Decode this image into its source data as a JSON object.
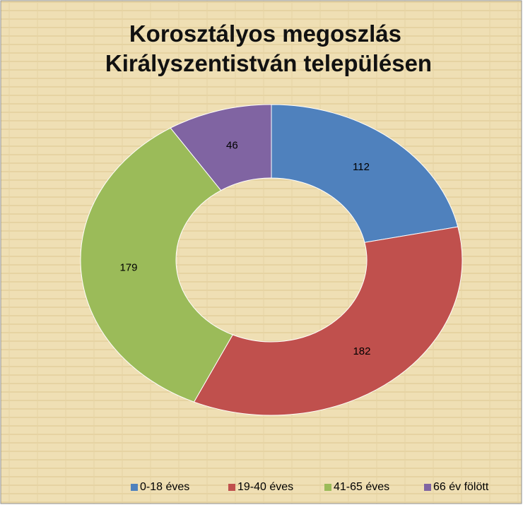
{
  "chart_data": {
    "type": "donut",
    "title": [
      "Korosztályos megoszlás",
      "Királyszentistván településen"
    ],
    "categories": [
      "0-18 éves",
      "19-40 éves",
      "41-65 éves",
      "66 év fölött"
    ],
    "values": [
      112,
      182,
      179,
      46
    ],
    "colors": [
      "#4f81bd",
      "#c0504d",
      "#9bbb59",
      "#8064a2"
    ],
    "legend": "bottom"
  }
}
